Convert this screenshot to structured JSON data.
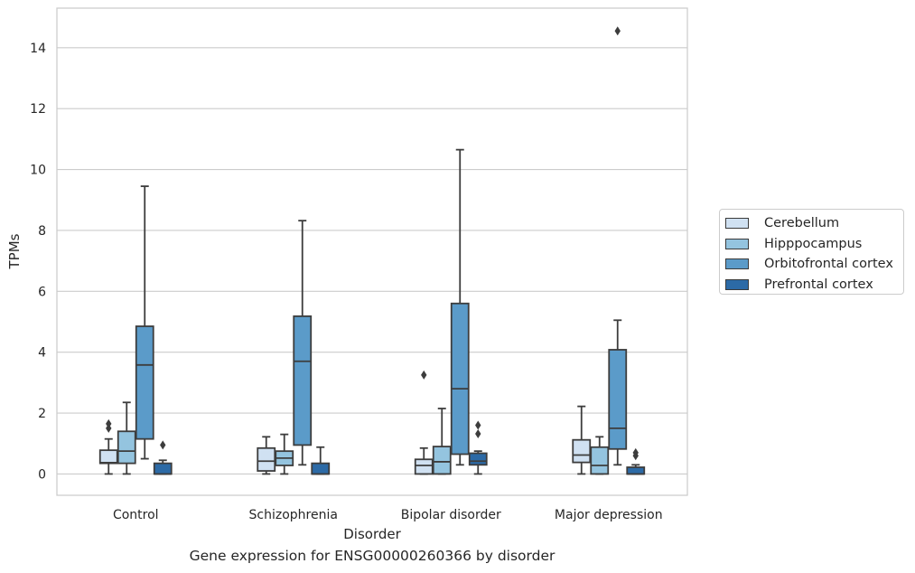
{
  "caption": "Gene expression for ENSG00000260366 by disorder",
  "chart_data": {
    "type": "box",
    "xlabel": "Disorder",
    "ylabel": "TPMs",
    "ylim": [
      -0.7,
      15.3
    ],
    "yticks": [
      0,
      2,
      4,
      6,
      8,
      10,
      12,
      14
    ],
    "categories": [
      "Control",
      "Schizophrenia",
      "Bipolar disorder",
      "Major depression"
    ],
    "grid": "horizontal",
    "legend_position": "right",
    "series": [
      {
        "name": "Cerebellum",
        "color": "#d0e1f2",
        "boxes": [
          {
            "whislo": 0.0,
            "q1": 0.35,
            "median": 0.37,
            "q3": 0.78,
            "whishi": 1.15,
            "fliers": [
              1.5,
              1.65
            ]
          },
          {
            "whislo": 0.0,
            "q1": 0.1,
            "median": 0.42,
            "q3": 0.85,
            "whishi": 1.22,
            "fliers": []
          },
          {
            "whislo": 0.0,
            "q1": 0.0,
            "median": 0.28,
            "q3": 0.48,
            "whishi": 0.85,
            "fliers": [
              3.25
            ]
          },
          {
            "whislo": 0.0,
            "q1": 0.38,
            "median": 0.62,
            "q3": 1.12,
            "whishi": 2.22,
            "fliers": []
          }
        ]
      },
      {
        "name": "Hipppocampus",
        "color": "#94c4df",
        "boxes": [
          {
            "whislo": 0.0,
            "q1": 0.35,
            "median": 0.75,
            "q3": 1.4,
            "whishi": 2.35,
            "fliers": []
          },
          {
            "whislo": 0.0,
            "q1": 0.28,
            "median": 0.52,
            "q3": 0.75,
            "whishi": 1.3,
            "fliers": []
          },
          {
            "whislo": 0.0,
            "q1": 0.0,
            "median": 0.4,
            "q3": 0.9,
            "whishi": 2.15,
            "fliers": []
          },
          {
            "whislo": 0.0,
            "q1": 0.0,
            "median": 0.28,
            "q3": 0.88,
            "whishi": 1.22,
            "fliers": []
          }
        ]
      },
      {
        "name": "Orbitofrontal cortex",
        "color": "#5b9bc9",
        "boxes": [
          {
            "whislo": 0.5,
            "q1": 1.15,
            "median": 3.58,
            "q3": 4.85,
            "whishi": 9.45,
            "fliers": []
          },
          {
            "whislo": 0.3,
            "q1": 0.95,
            "median": 3.7,
            "q3": 5.18,
            "whishi": 8.32,
            "fliers": []
          },
          {
            "whislo": 0.3,
            "q1": 0.65,
            "median": 2.8,
            "q3": 5.6,
            "whishi": 10.65,
            "fliers": []
          },
          {
            "whislo": 0.3,
            "q1": 0.82,
            "median": 1.5,
            "q3": 4.08,
            "whishi": 5.05,
            "fliers": [
              14.55
            ]
          }
        ]
      },
      {
        "name": "Prefrontal cortex",
        "color": "#2c6aa6",
        "boxes": [
          {
            "whislo": 0.0,
            "q1": 0.0,
            "median": 0.0,
            "q3": 0.35,
            "whishi": 0.45,
            "fliers": [
              0.95
            ]
          },
          {
            "whislo": 0.0,
            "q1": 0.0,
            "median": 0.0,
            "q3": 0.35,
            "whishi": 0.88,
            "fliers": []
          },
          {
            "whislo": 0.0,
            "q1": 0.3,
            "median": 0.42,
            "q3": 0.68,
            "whishi": 0.75,
            "fliers": [
              1.32,
              1.6
            ]
          },
          {
            "whislo": 0.0,
            "q1": 0.0,
            "median": 0.0,
            "q3": 0.22,
            "whishi": 0.3,
            "fliers": [
              0.6,
              0.7
            ]
          }
        ]
      }
    ]
  }
}
